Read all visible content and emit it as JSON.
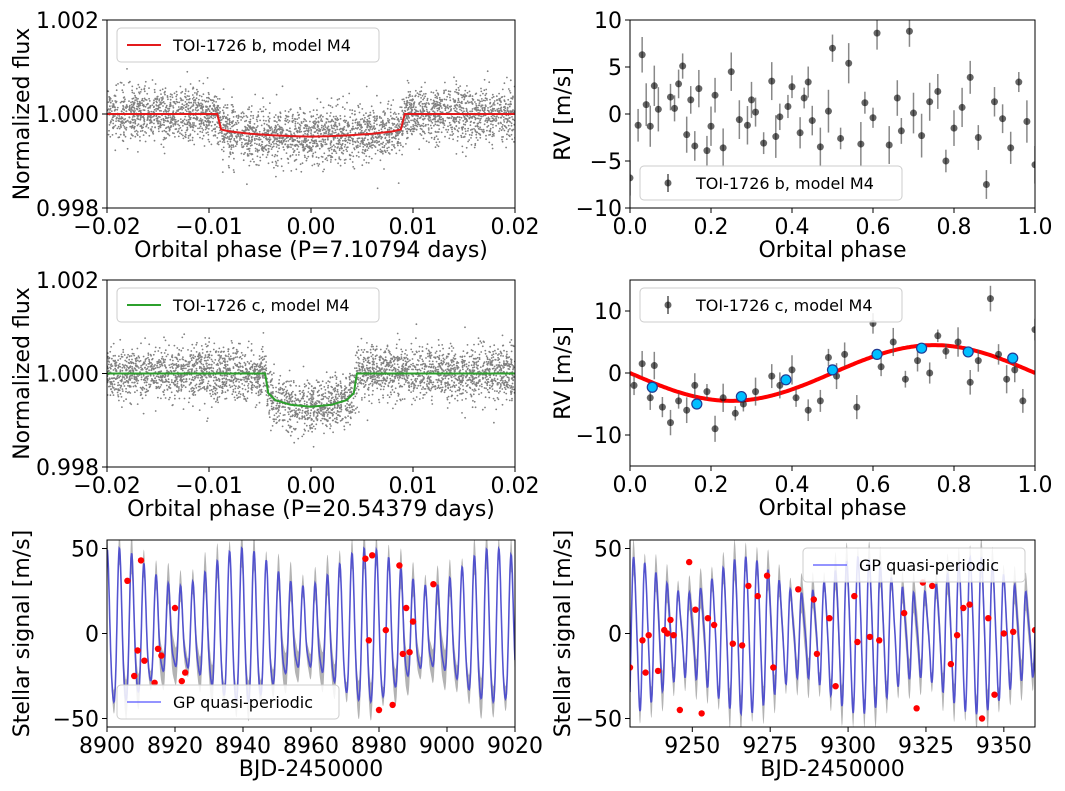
{
  "chart_data": [
    {
      "type": "scatter",
      "title": "",
      "xlabel": "Orbital phase (P=7.10794 days)",
      "ylabel": "Normalized flux",
      "xlim": [
        -0.02,
        0.02
      ],
      "ylim": [
        0.998,
        1.002
      ],
      "xticks": [
        -0.02,
        -0.01,
        0.0,
        0.01,
        0.02
      ],
      "xtick_labels": [
        "−0.02",
        "−0.01",
        "0.00",
        "0.01",
        "0.02"
      ],
      "yticks": [
        0.998,
        1.0,
        1.002
      ],
      "ytick_labels": [
        "0.998",
        "1.000",
        "1.002"
      ],
      "legend": {
        "label": "TOI-1726 b, model M4",
        "location": "top-left",
        "color": "#e31a1c"
      },
      "model": {
        "color": "#e31a1c",
        "x": [
          -0.02,
          -0.0092,
          -0.0088,
          -0.008,
          -0.006,
          -0.004,
          -0.002,
          0.0,
          0.002,
          0.004,
          0.006,
          0.008,
          0.0088,
          0.0092,
          0.02
        ],
        "y": [
          1.0,
          1.0,
          0.99967,
          0.99963,
          0.99958,
          0.99955,
          0.99953,
          0.99952,
          0.99953,
          0.99955,
          0.99958,
          0.99963,
          0.99967,
          1.0,
          1.0
        ]
      },
      "scatter_color": "#808080"
    },
    {
      "type": "scatter",
      "title": "",
      "xlabel": "Orbital phase",
      "ylabel": "RV [m/s]",
      "xlim": [
        0.0,
        1.0
      ],
      "ylim": [
        -10,
        10
      ],
      "xticks": [
        0.0,
        0.2,
        0.4,
        0.6,
        0.8,
        1.0
      ],
      "xtick_labels": [
        "0.0",
        "0.2",
        "0.4",
        "0.6",
        "0.8",
        "1.0"
      ],
      "yticks": [
        -10,
        -5,
        0,
        5,
        10
      ],
      "ytick_labels": [
        "−10",
        "−5",
        "0",
        "5",
        "10"
      ],
      "legend": {
        "label": "TOI-1726 b, model M4",
        "location": "bottom-left",
        "color": "#000000"
      },
      "points": {
        "x": [
          0.0,
          0.02,
          0.03,
          0.04,
          0.05,
          0.06,
          0.07,
          0.1,
          0.11,
          0.12,
          0.13,
          0.14,
          0.15,
          0.16,
          0.17,
          0.19,
          0.2,
          0.21,
          0.23,
          0.25,
          0.27,
          0.29,
          0.3,
          0.31,
          0.33,
          0.35,
          0.36,
          0.37,
          0.39,
          0.4,
          0.42,
          0.43,
          0.44,
          0.45,
          0.47,
          0.49,
          0.5,
          0.52,
          0.54,
          0.57,
          0.58,
          0.6,
          0.61,
          0.64,
          0.66,
          0.67,
          0.69,
          0.7,
          0.72,
          0.74,
          0.76,
          0.78,
          0.8,
          0.82,
          0.84,
          0.86,
          0.88,
          0.9,
          0.92,
          0.94,
          0.96,
          0.98,
          1.0
        ],
        "y": [
          -6.8,
          -1.2,
          6.3,
          1.0,
          -1.3,
          3.0,
          0.5,
          1.8,
          0.6,
          3.2,
          5.1,
          -2.2,
          1.5,
          -3.4,
          2.7,
          -3.9,
          -1.3,
          2.0,
          -3.6,
          4.5,
          -0.6,
          -1.2,
          1.5,
          0.2,
          -3.1,
          3.5,
          -2.4,
          -0.3,
          0.8,
          2.9,
          -2.0,
          1.7,
          3.4,
          -0.7,
          -3.5,
          0.3,
          7.0,
          -2.6,
          5.4,
          -3.2,
          1.2,
          -0.4,
          8.6,
          -3.3,
          1.7,
          -1.8,
          8.8,
          0.1,
          -2.3,
          1.3,
          2.4,
          -5.0,
          -1.5,
          0.7,
          3.9,
          -2.5,
          -7.5,
          1.3,
          -0.5,
          -3.6,
          3.4,
          -0.8,
          -5.4
        ],
        "color": "#000000"
      }
    },
    {
      "type": "scatter",
      "title": "",
      "xlabel": "Orbital phase (P=20.54379 days)",
      "ylabel": "Normalized flux",
      "xlim": [
        -0.02,
        0.02
      ],
      "ylim": [
        0.998,
        1.002
      ],
      "xticks": [
        -0.02,
        -0.01,
        0.0,
        0.01,
        0.02
      ],
      "xtick_labels": [
        "−0.02",
        "−0.01",
        "0.00",
        "0.01",
        "0.02"
      ],
      "yticks": [
        0.998,
        1.0,
        1.002
      ],
      "ytick_labels": [
        "0.998",
        "1.000",
        "1.002"
      ],
      "legend": {
        "label": "TOI-1726 c, model M4",
        "location": "top-left",
        "color": "#2ca02c"
      },
      "model": {
        "color": "#2ca02c",
        "x": [
          -0.02,
          -0.0045,
          -0.0042,
          -0.0035,
          -0.002,
          0.0,
          0.002,
          0.0035,
          0.0042,
          0.0045,
          0.02
        ],
        "y": [
          1.0,
          1.0,
          0.99958,
          0.99943,
          0.99933,
          0.99929,
          0.99933,
          0.99943,
          0.99958,
          1.0,
          1.0
        ]
      },
      "scatter_color": "#808080"
    },
    {
      "type": "scatter",
      "title": "",
      "xlabel": "Orbital phase",
      "ylabel": "RV [m/s]",
      "xlim": [
        0.0,
        1.0
      ],
      "ylim": [
        -15,
        15
      ],
      "xticks": [
        0.0,
        0.2,
        0.4,
        0.6,
        0.8,
        1.0
      ],
      "xtick_labels": [
        "0.0",
        "0.2",
        "0.4",
        "0.6",
        "0.8",
        "1.0"
      ],
      "yticks": [
        -10,
        0,
        10
      ],
      "ytick_labels": [
        "−10",
        "0",
        "10"
      ],
      "legend": {
        "label": "TOI-1726 c, model M4",
        "location": "top-left",
        "color": "#000000"
      },
      "model": {
        "type": "sine",
        "amplitude": 4.5,
        "color": "#ff0000"
      },
      "binned": {
        "x": [
          0.055,
          0.165,
          0.275,
          0.385,
          0.5,
          0.61,
          0.72,
          0.835,
          0.945
        ],
        "y": [
          -2.3,
          -5.0,
          -3.8,
          -1.1,
          0.5,
          3.0,
          4.0,
          3.4,
          2.4
        ],
        "color": "#00bfff"
      },
      "points": {
        "x": [
          0.01,
          0.03,
          0.05,
          0.06,
          0.08,
          0.1,
          0.12,
          0.14,
          0.16,
          0.19,
          0.21,
          0.23,
          0.26,
          0.28,
          0.31,
          0.35,
          0.37,
          0.4,
          0.41,
          0.44,
          0.47,
          0.49,
          0.51,
          0.53,
          0.56,
          0.6,
          0.62,
          0.65,
          0.68,
          0.71,
          0.74,
          0.76,
          0.78,
          0.81,
          0.84,
          0.86,
          0.89,
          0.91,
          0.93,
          0.95,
          0.97,
          1.0
        ],
        "y": [
          -2.0,
          1.5,
          -4.0,
          1.2,
          -5.5,
          -8.0,
          -4.5,
          -6.0,
          -2.0,
          -3.0,
          -9.0,
          -4.0,
          -6.5,
          -5.0,
          -3.0,
          -0.5,
          -2.0,
          0.5,
          -4.0,
          -6.0,
          -4.5,
          2.5,
          -0.5,
          3.0,
          -5.5,
          8.0,
          1.0,
          5.0,
          -1.0,
          2.0,
          0.0,
          6.0,
          3.5,
          5.0,
          -1.5,
          2.0,
          12.0,
          3.0,
          -1.0,
          0.5,
          -4.5,
          7.0
        ],
        "color": "#000000"
      }
    },
    {
      "type": "line",
      "title": "",
      "xlabel": "BJD-2450000",
      "ylabel": "Stellar signal [m/s]",
      "xlim": [
        8900,
        9020
      ],
      "ylim": [
        -55,
        55
      ],
      "xticks": [
        8900,
        8920,
        8940,
        8960,
        8980,
        9000,
        9020
      ],
      "xtick_labels": [
        "8900",
        "8920",
        "8940",
        "8960",
        "8980",
        "9000",
        "9020"
      ],
      "yticks": [
        -50,
        0,
        50
      ],
      "ytick_labels": [
        "−50",
        "0",
        "50"
      ],
      "legend": {
        "label": "GP quasi-periodic",
        "location": "bottom-left",
        "color": "#4c4cff"
      },
      "gp": {
        "period_days": 3.6,
        "amplitude": 45,
        "color": "#4040d0",
        "band_color": "#999999"
      },
      "points": {
        "x": [
          8906,
          8908,
          8909,
          8910,
          8911,
          8914,
          8915,
          8916,
          8920,
          8922,
          8923,
          8976,
          8977,
          8978,
          8980,
          8982,
          8984,
          8986,
          8987,
          8988,
          8989,
          8990,
          8996
        ],
        "y": [
          31,
          -25,
          -10,
          43,
          -16,
          -29,
          -9,
          -13,
          15,
          -28,
          -23,
          44,
          -4,
          46,
          -45,
          2,
          -42,
          40,
          -12,
          15,
          -11,
          7,
          29
        ],
        "color": "#ff0000"
      }
    },
    {
      "type": "line",
      "title": "",
      "xlabel": "BJD-2450000",
      "ylabel": "Stellar signal [m/s]",
      "xlim": [
        9230,
        9360
      ],
      "ylim": [
        -55,
        55
      ],
      "xticks": [
        9250,
        9275,
        9300,
        9325,
        9350
      ],
      "xtick_labels": [
        "9250",
        "9275",
        "9300",
        "9325",
        "9350"
      ],
      "yticks": [
        -50,
        0,
        50
      ],
      "ytick_labels": [
        "−50",
        "0",
        "50"
      ],
      "legend": {
        "label": "GP quasi-periodic",
        "location": "top-right",
        "color": "#4c4cff"
      },
      "gp": {
        "period_days": 3.6,
        "amplitude": 45,
        "color": "#4040d0",
        "band_color": "#999999"
      },
      "points": {
        "x": [
          9230,
          9234,
          9235,
          9236,
          9239,
          9241,
          9242,
          9243,
          9244,
          9246,
          9249,
          9251,
          9253,
          9255,
          9257,
          9263,
          9266,
          9268,
          9271,
          9274,
          9276,
          9284,
          9289,
          9290,
          9294,
          9296,
          9302,
          9303,
          9307,
          9310,
          9318,
          9322,
          9324,
          9327,
          9333,
          9335,
          9337,
          9339,
          9343,
          9345,
          9347,
          9350,
          9353,
          9360
        ],
        "y": [
          -20,
          -4,
          -23,
          -1,
          -22,
          2,
          0,
          8,
          -1,
          -45,
          42,
          14,
          -47,
          9,
          5,
          -6,
          -7,
          28,
          22,
          34,
          -20,
          26,
          20,
          -12,
          9,
          -31,
          22,
          -5,
          -2,
          -4,
          12,
          -44,
          30,
          28,
          -18,
          -1,
          15,
          17,
          -50,
          9,
          -36,
          0,
          1,
          2
        ],
        "color": "#ff0000"
      }
    }
  ]
}
